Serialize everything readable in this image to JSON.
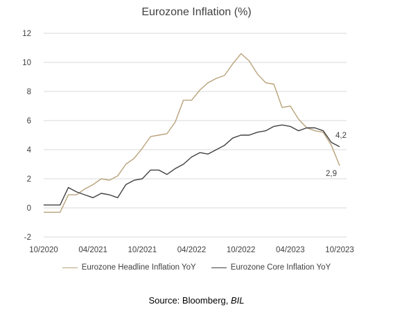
{
  "source": {
    "prefix": "Source: Bloomberg, ",
    "italic": "BIL"
  },
  "chart_data": {
    "type": "line",
    "title": "Eurozone Inflation (%)",
    "xlabel": "",
    "ylabel": "",
    "ylim": [
      -2,
      12
    ],
    "yticks": [
      -2,
      0,
      2,
      4,
      6,
      8,
      10,
      12
    ],
    "grid": "horizontal",
    "legend_position": "bottom",
    "x": [
      "2020-10",
      "2020-11",
      "2020-12",
      "2021-01",
      "2021-02",
      "2021-03",
      "2021-04",
      "2021-05",
      "2021-06",
      "2021-07",
      "2021-08",
      "2021-09",
      "2021-10",
      "2021-11",
      "2021-12",
      "2022-01",
      "2022-02",
      "2022-03",
      "2022-04",
      "2022-05",
      "2022-06",
      "2022-07",
      "2022-08",
      "2022-09",
      "2022-10",
      "2022-11",
      "2022-12",
      "2023-01",
      "2023-02",
      "2023-03",
      "2023-04",
      "2023-05",
      "2023-06",
      "2023-07",
      "2023-08",
      "2023-09",
      "2023-10"
    ],
    "x_tick_labels": [
      "10/2020",
      "04/2021",
      "10/2021",
      "04/2022",
      "10/2022",
      "04/2023",
      "10/2023"
    ],
    "x_tick_positions": [
      "2020-10",
      "2021-04",
      "2021-10",
      "2022-04",
      "2022-10",
      "2023-04",
      "2023-10"
    ],
    "series": [
      {
        "name": "Eurozone Headline Inflation YoY",
        "color": "#B8A27A",
        "values": [
          -0.3,
          -0.3,
          -0.3,
          0.9,
          0.9,
          1.3,
          1.6,
          2.0,
          1.9,
          2.2,
          3.0,
          3.4,
          4.1,
          4.9,
          5.0,
          5.1,
          5.9,
          7.4,
          7.4,
          8.1,
          8.6,
          8.9,
          9.1,
          9.9,
          10.6,
          10.1,
          9.2,
          8.6,
          8.5,
          6.9,
          7.0,
          6.1,
          5.5,
          5.3,
          5.2,
          4.3,
          2.9
        ],
        "end_label": "2,9"
      },
      {
        "name": "Eurozone Core Inflation YoY",
        "color": "#404040",
        "values": [
          0.2,
          0.2,
          0.2,
          1.4,
          1.1,
          0.9,
          0.7,
          1.0,
          0.9,
          0.7,
          1.6,
          1.9,
          2.0,
          2.6,
          2.6,
          2.3,
          2.7,
          3.0,
          3.5,
          3.8,
          3.7,
          4.0,
          4.3,
          4.8,
          5.0,
          5.0,
          5.2,
          5.3,
          5.6,
          5.7,
          5.6,
          5.3,
          5.5,
          5.5,
          5.3,
          4.5,
          4.2
        ],
        "end_label": "4,2"
      }
    ]
  }
}
